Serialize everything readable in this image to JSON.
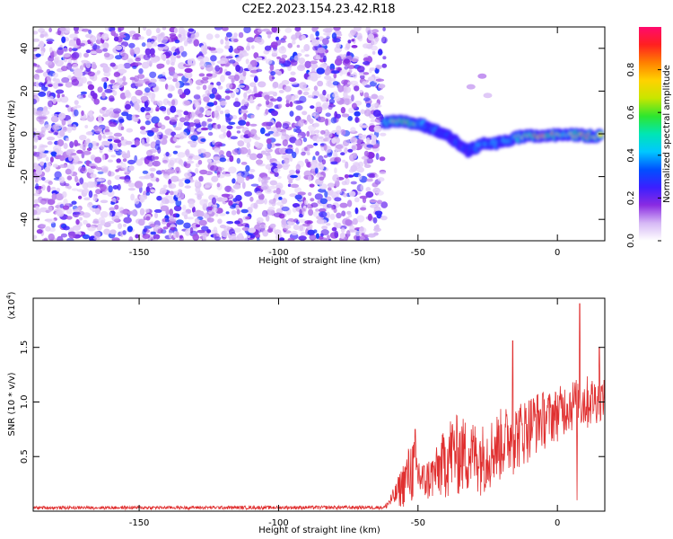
{
  "figure": {
    "title": "C2E2.2023.154.23.42.R18"
  },
  "chart_data": [
    {
      "type": "heatmap",
      "panel": "spectrogram",
      "xlabel": "Height of straight line (km)",
      "ylabel": "Frequency (Hz)",
      "xlim": [
        -188,
        17
      ],
      "ylim": [
        -50,
        50
      ],
      "xticks": [
        -150,
        -100,
        -50,
        0
      ],
      "yticks": [
        -40,
        -20,
        0,
        20,
        40
      ],
      "grid": false,
      "colorbar": {
        "label": "Normalized spectral amplitude",
        "range": [
          0,
          1
        ],
        "ticks": [
          0.0,
          0.2,
          0.4,
          0.6,
          0.8
        ],
        "tick_labels": [
          "0.0",
          "0.2",
          "0.4",
          "0.6",
          "0.8"
        ],
        "colors": [
          "#ffffff",
          "#d6b8f5",
          "#8a2be2",
          "#3b1fff",
          "#0050ff",
          "#00c8ff",
          "#00e6b4",
          "#2ee62e",
          "#c8e600",
          "#ffd200",
          "#ff8000",
          "#ff2020",
          "#ff0a6e"
        ]
      },
      "noise_region": {
        "x_range": [
          -188,
          -62
        ],
        "y_range": [
          -50,
          50
        ],
        "amplitude_range": [
          0.05,
          0.3
        ]
      },
      "ridge": {
        "description": "signal track",
        "points": [
          {
            "x": -62,
            "y": 5,
            "amp": 0.45
          },
          {
            "x": -55,
            "y": 6,
            "amp": 0.75
          },
          {
            "x": -48,
            "y": 4,
            "amp": 0.5
          },
          {
            "x": -42,
            "y": 1,
            "amp": 0.35
          },
          {
            "x": -36,
            "y": -4,
            "amp": 0.3
          },
          {
            "x": -32,
            "y": -8,
            "amp": 0.3
          },
          {
            "x": -27,
            "y": -5,
            "amp": 0.5
          },
          {
            "x": -20,
            "y": -4,
            "amp": 0.45
          },
          {
            "x": -12,
            "y": -1,
            "amp": 0.6
          },
          {
            "x": -5,
            "y": -1,
            "amp": 0.9
          },
          {
            "x": 3,
            "y": 0,
            "amp": 0.55
          },
          {
            "x": 10,
            "y": -1,
            "amp": 0.8
          },
          {
            "x": 16,
            "y": -1,
            "amp": 0.6
          }
        ],
        "halfwidth": 5
      },
      "faint_blobs": [
        {
          "x": -27,
          "y": 27,
          "amp": 0.12
        },
        {
          "x": -31,
          "y": 22,
          "amp": 0.1
        },
        {
          "x": -25,
          "y": 18,
          "amp": 0.08
        }
      ]
    },
    {
      "type": "line",
      "panel": "snr",
      "xlabel": "Height of straight line (km)",
      "ylabel": "SNR (10 * v/v)",
      "y_multiplier": "(x10",
      "y_multiplier_exp": "4",
      "y_multiplier_close": ")",
      "xlim": [
        -188,
        17
      ],
      "ylim": [
        0,
        19500
      ],
      "xticks": [
        -150,
        -100,
        -50,
        0
      ],
      "yticks": [
        5000,
        10000,
        15000
      ],
      "ytick_labels": [
        "0.5",
        "1.0",
        "1.5"
      ],
      "grid": false,
      "color": "#e03030",
      "baseline": 300,
      "envelope": [
        {
          "x": -188,
          "low": 150,
          "high": 450
        },
        {
          "x": -62,
          "low": 150,
          "high": 500
        },
        {
          "x": -58,
          "low": 200,
          "high": 2500
        },
        {
          "x": -52,
          "low": 300,
          "high": 7000
        },
        {
          "x": -48,
          "low": 500,
          "high": 4500
        },
        {
          "x": -44,
          "low": 800,
          "high": 5500
        },
        {
          "x": -38,
          "low": 1000,
          "high": 9000
        },
        {
          "x": -32,
          "low": 1200,
          "high": 8500
        },
        {
          "x": -26,
          "low": 1500,
          "high": 8000
        },
        {
          "x": -20,
          "low": 2500,
          "high": 9500
        },
        {
          "x": -14,
          "low": 3500,
          "high": 10000
        },
        {
          "x": -8,
          "low": 5000,
          "high": 11000
        },
        {
          "x": -2,
          "low": 6000,
          "high": 11000
        },
        {
          "x": 4,
          "low": 7000,
          "high": 12000
        },
        {
          "x": 10,
          "low": 7000,
          "high": 12500
        },
        {
          "x": 17,
          "low": 8500,
          "high": 12000
        }
      ],
      "spikes": [
        {
          "x": -51,
          "y": 7500
        },
        {
          "x": -16,
          "y": 15600
        },
        {
          "x": 8,
          "y": 19000
        },
        {
          "x": 15,
          "y": 15000
        },
        {
          "x": 7,
          "y": 1000
        }
      ]
    }
  ]
}
